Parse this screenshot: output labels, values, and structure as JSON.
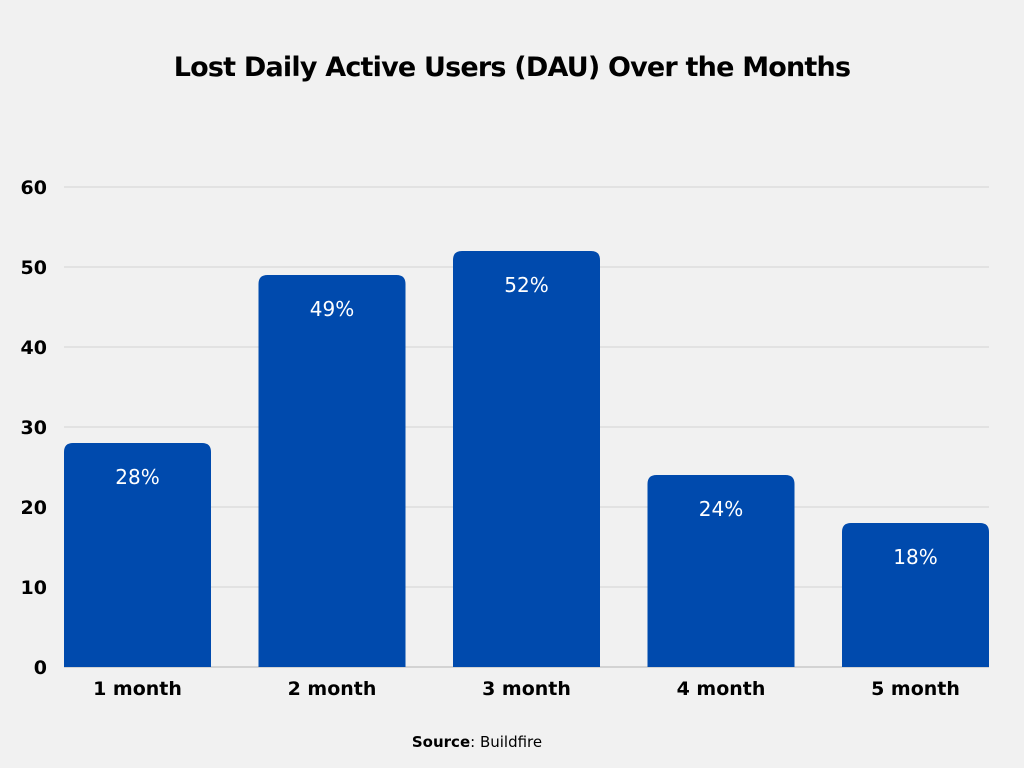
{
  "chart_data": {
    "type": "bar",
    "title": "Lost Daily Active Users (DAU) Over the Months",
    "categories": [
      "1 month",
      "2 month",
      "3 month",
      "4 month",
      "5 month"
    ],
    "values": [
      28,
      49,
      52,
      24,
      18
    ],
    "data_labels": [
      "28%",
      "49%",
      "52%",
      "24%",
      "18%"
    ],
    "xlabel": "",
    "ylabel": "",
    "ylim": [
      0,
      60
    ],
    "yticks": [
      0,
      10,
      20,
      30,
      40,
      50,
      60
    ],
    "grid": true,
    "bar_color": "#004aad",
    "label_color": "#ffffff"
  },
  "source": {
    "label": "Source",
    "value": ": Buildfire"
  }
}
